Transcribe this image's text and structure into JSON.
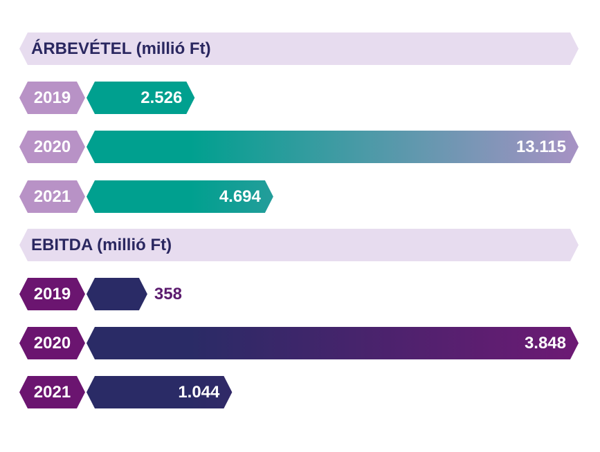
{
  "chart_data": [
    {
      "type": "bar",
      "orientation": "horizontal",
      "title": "ÁRBEVÉTEL (millió Ft)",
      "categories": [
        "2019",
        "2020",
        "2021"
      ],
      "values": [
        2526,
        13115,
        4694
      ],
      "value_labels": [
        "2.526",
        "13.115",
        "4.694"
      ],
      "unit": "millió Ft",
      "colors": {
        "gradient_start": "#00a08f",
        "gradient_end": "#a792c4",
        "year_tag": "#b892c6",
        "header_bg": "#e7dcef",
        "header_text": "#2a2760",
        "label_inside": "#ffffff",
        "label_outside": "#5b1b6e"
      }
    },
    {
      "type": "bar",
      "orientation": "horizontal",
      "title": "EBITDA (millió Ft)",
      "categories": [
        "2019",
        "2020",
        "2021"
      ],
      "values": [
        358,
        3848,
        1044
      ],
      "value_labels": [
        "358",
        "3.848",
        "1.044"
      ],
      "unit": "millió Ft",
      "colors": {
        "gradient_start": "#2a2b66",
        "gradient_end": "#6d1a74",
        "year_tag": "#6b1570",
        "header_bg": "#e7dcef",
        "header_text": "#2a2760",
        "label_inside": "#ffffff",
        "label_outside": "#5b1b6e"
      }
    }
  ]
}
